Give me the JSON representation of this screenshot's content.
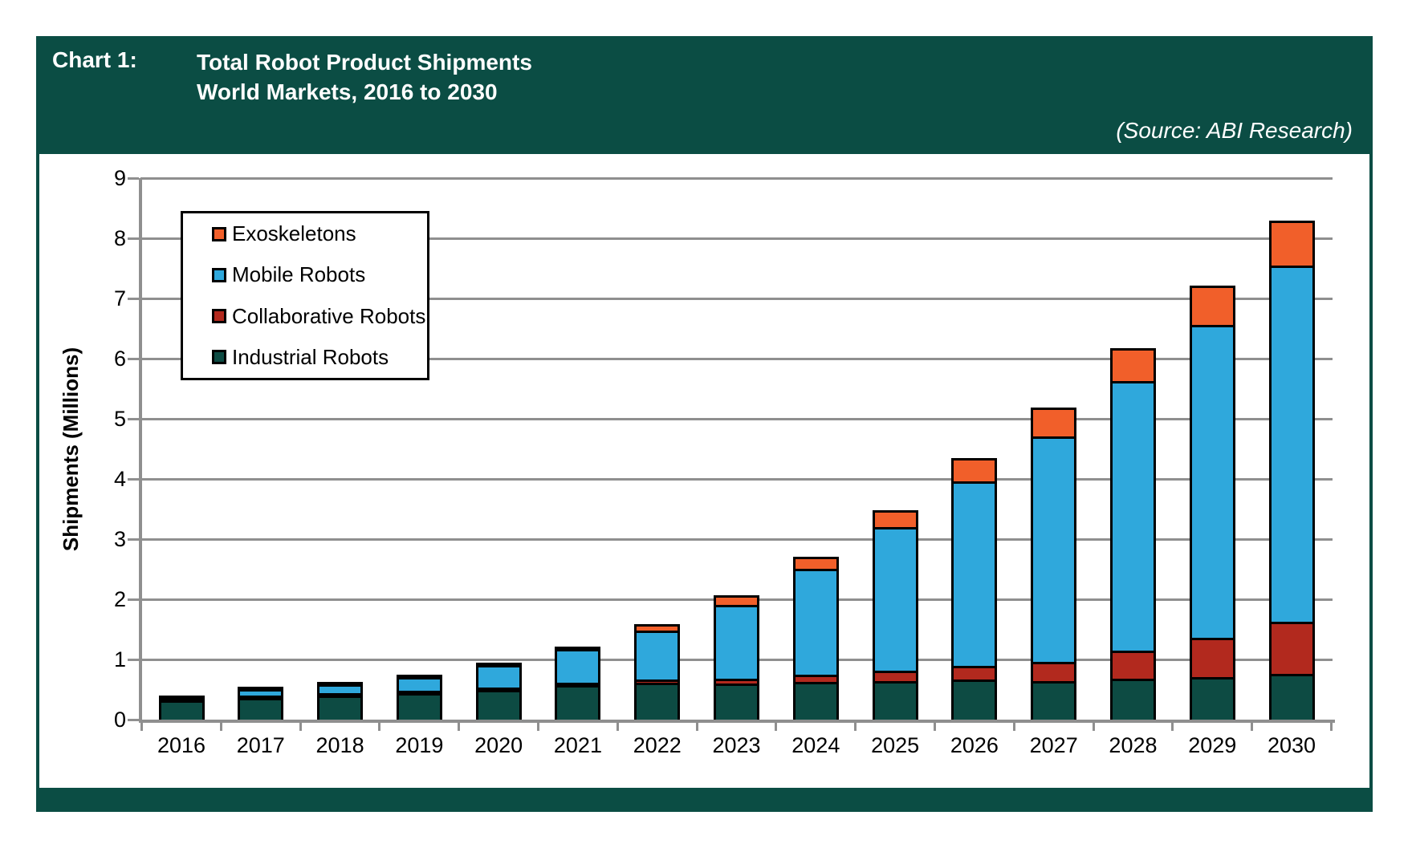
{
  "header": {
    "chart_label": "Chart 1:",
    "title_line1": "Total Robot Product Shipments",
    "title_line2": "World Markets, 2016 to 2030",
    "source": "(Source: ABI Research)"
  },
  "chart_data": {
    "type": "bar",
    "stacked": true,
    "title": "Total Robot Product Shipments, World Markets, 2016 to 2030",
    "ylabel": "Shipments (Millions)",
    "xlabel": "",
    "ylim": [
      0,
      9
    ],
    "yticks": [
      0,
      1,
      2,
      3,
      4,
      5,
      6,
      7,
      8,
      9
    ],
    "grid": true,
    "legend_position": "upper-left",
    "legend_order": [
      "Exoskeletons",
      "Mobile Robots",
      "Collaborative Robots",
      "Industrial Robots"
    ],
    "categories": [
      "2016",
      "2017",
      "2018",
      "2019",
      "2020",
      "2021",
      "2022",
      "2023",
      "2024",
      "2025",
      "2026",
      "2027",
      "2028",
      "2029",
      "2030"
    ],
    "series": [
      {
        "name": "Industrial Robots",
        "color": "#0d4b43",
        "values": [
          0.32,
          0.36,
          0.4,
          0.44,
          0.49,
          0.57,
          0.61,
          0.6,
          0.62,
          0.64,
          0.66,
          0.64,
          0.68,
          0.7,
          0.76
        ]
      },
      {
        "name": "Collaborative Robots",
        "color": "#b2291e",
        "values": [
          0.01,
          0.01,
          0.01,
          0.02,
          0.02,
          0.03,
          0.05,
          0.08,
          0.12,
          0.17,
          0.22,
          0.32,
          0.46,
          0.65,
          0.86
        ]
      },
      {
        "name": "Mobile Robots",
        "color": "#2fa8dc",
        "values": [
          0.02,
          0.1,
          0.15,
          0.22,
          0.37,
          0.56,
          0.81,
          1.22,
          1.76,
          2.38,
          3.06,
          3.75,
          4.48,
          5.2,
          5.92
        ]
      },
      {
        "name": "Exoskeletons",
        "color": "#f15f2a",
        "values": [
          0.0,
          0.01,
          0.02,
          0.02,
          0.02,
          0.04,
          0.1,
          0.16,
          0.2,
          0.28,
          0.38,
          0.48,
          0.55,
          0.65,
          0.74
        ]
      }
    ],
    "totals": [
      0.35,
      0.48,
      0.58,
      0.7,
      0.9,
      1.2,
      1.57,
      2.06,
      2.7,
      3.47,
      4.32,
      5.19,
      6.17,
      7.2,
      8.28
    ]
  },
  "colors": {
    "panel": "#0b4d44",
    "grid": "#8f8f8f",
    "bar_outline": "#000000",
    "header_text": "#ffffff"
  }
}
